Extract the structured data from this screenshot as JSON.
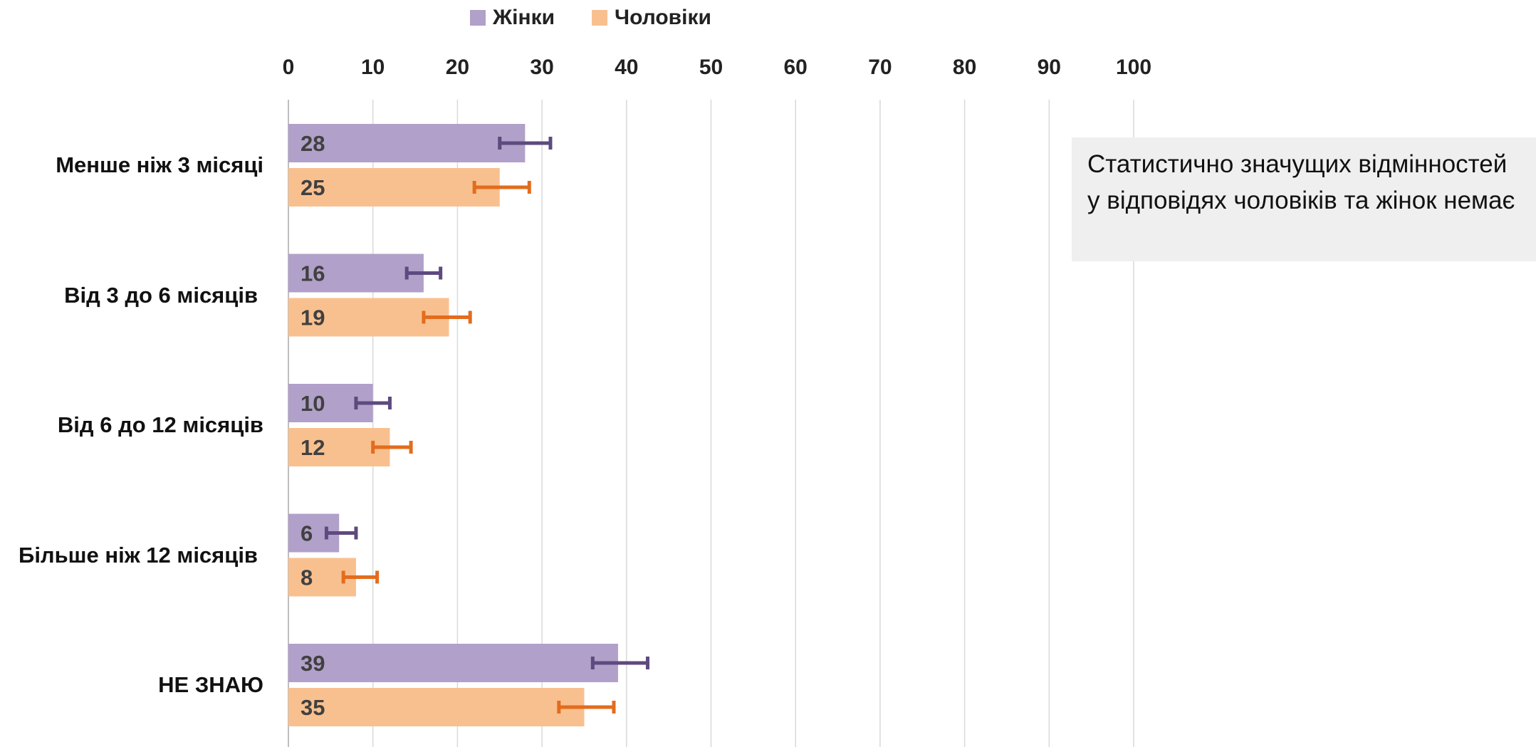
{
  "chart_data": {
    "type": "bar",
    "orientation": "horizontal",
    "categories": [
      "Менше ніж 3 місяці",
      "Від 3 до 6 місяців",
      "Від 6 до 12 місяців",
      "Більше ніж 12 місяців",
      "НЕ ЗНАЮ"
    ],
    "series": [
      {
        "name": "Жінки",
        "values": [
          28,
          16,
          10,
          6,
          39
        ],
        "color": "#b1a0c9",
        "error_color": "#5d4a7e",
        "error_low": [
          25,
          14,
          8,
          4.5,
          36
        ],
        "error_high": [
          31,
          18,
          12,
          8,
          42.5
        ]
      },
      {
        "name": "Чоловіки",
        "values": [
          25,
          19,
          12,
          8,
          35
        ],
        "color": "#f9c08f",
        "error_color": "#e36c1d",
        "error_low": [
          22,
          16,
          10,
          6.5,
          32
        ],
        "error_high": [
          28.5,
          21.5,
          14.5,
          10.5,
          38.5
        ]
      }
    ],
    "xlim": [
      0,
      100
    ],
    "xticks": [
      0,
      10,
      20,
      30,
      40,
      50,
      60,
      70,
      80,
      90,
      100
    ],
    "x_axis_position": "top",
    "grid": true,
    "legend_position": "top",
    "annotation": "Статистично значущих відмінностей у відповідях чоловіків та жінок немає"
  }
}
